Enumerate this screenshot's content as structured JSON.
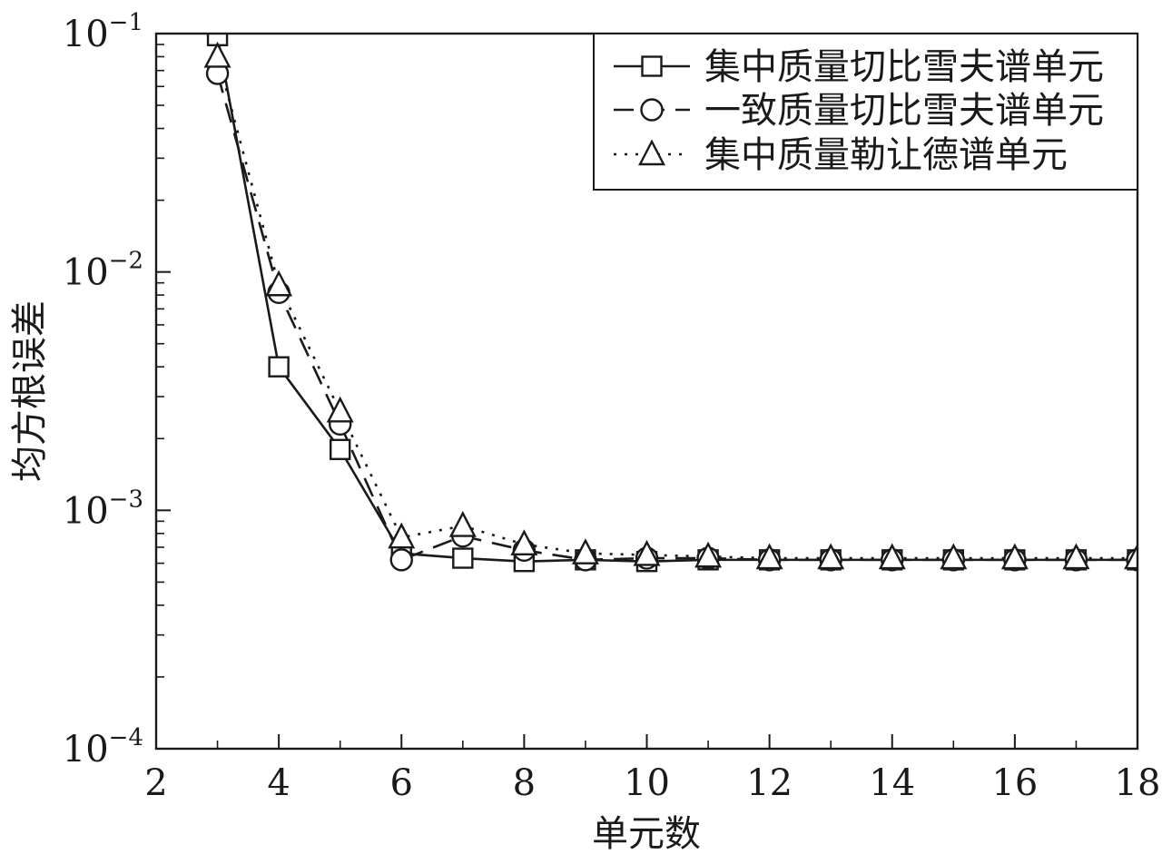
{
  "chart_data": {
    "type": "line",
    "xlabel": "单元数",
    "ylabel": "均方根误差",
    "xlim": [
      2,
      18
    ],
    "ylim": [
      0.0001,
      0.1
    ],
    "yscale": "log",
    "x_ticks": [
      2,
      4,
      6,
      8,
      10,
      12,
      14,
      16,
      18
    ],
    "x_tick_labels": [
      "2",
      "4",
      "6",
      "8",
      "10",
      "12",
      "14",
      "16",
      "18"
    ],
    "y_ticks": [
      0.1,
      0.01,
      0.001,
      0.0001
    ],
    "y_tick_labels": [
      {
        "base": "10",
        "exp": "−1"
      },
      {
        "base": "10",
        "exp": "−2"
      },
      {
        "base": "10",
        "exp": "−3"
      },
      {
        "base": "10",
        "exp": "−4"
      }
    ],
    "grid": false,
    "legend_position": "top-right",
    "series": [
      {
        "name": "集中质量切比雪夫谱单元",
        "marker": "square",
        "line": "solid",
        "x": [
          3,
          4,
          5,
          6,
          7,
          8,
          9,
          10,
          11,
          12,
          13,
          14,
          15,
          16,
          17,
          18
        ],
        "y": [
          0.098,
          0.004,
          0.0018,
          0.00066,
          0.00063,
          0.00061,
          0.00062,
          0.00061,
          0.00062,
          0.00062,
          0.00062,
          0.00062,
          0.00062,
          0.00062,
          0.00062,
          0.00062
        ]
      },
      {
        "name": "一致质量切比雪夫谱单元",
        "marker": "circle",
        "line": "dashed",
        "x": [
          3,
          4,
          5,
          6,
          7,
          8,
          9,
          10,
          11,
          12,
          13,
          14,
          15,
          16,
          17,
          18
        ],
        "y": [
          0.068,
          0.0082,
          0.0023,
          0.00062,
          0.00078,
          0.00068,
          0.00062,
          0.00063,
          0.00063,
          0.00062,
          0.00062,
          0.00062,
          0.00062,
          0.00062,
          0.00062,
          0.00062
        ]
      },
      {
        "name": "集中质量勒让德谱单元",
        "marker": "triangle",
        "line": "dotted",
        "x": [
          3,
          4,
          5,
          6,
          7,
          8,
          9,
          10,
          11,
          12,
          13,
          14,
          15,
          16,
          17,
          18
        ],
        "y": [
          0.08,
          0.0088,
          0.0026,
          0.00077,
          0.00086,
          0.00072,
          0.00066,
          0.00065,
          0.00064,
          0.00063,
          0.00063,
          0.00063,
          0.00063,
          0.00063,
          0.00063,
          0.00063
        ]
      }
    ]
  }
}
